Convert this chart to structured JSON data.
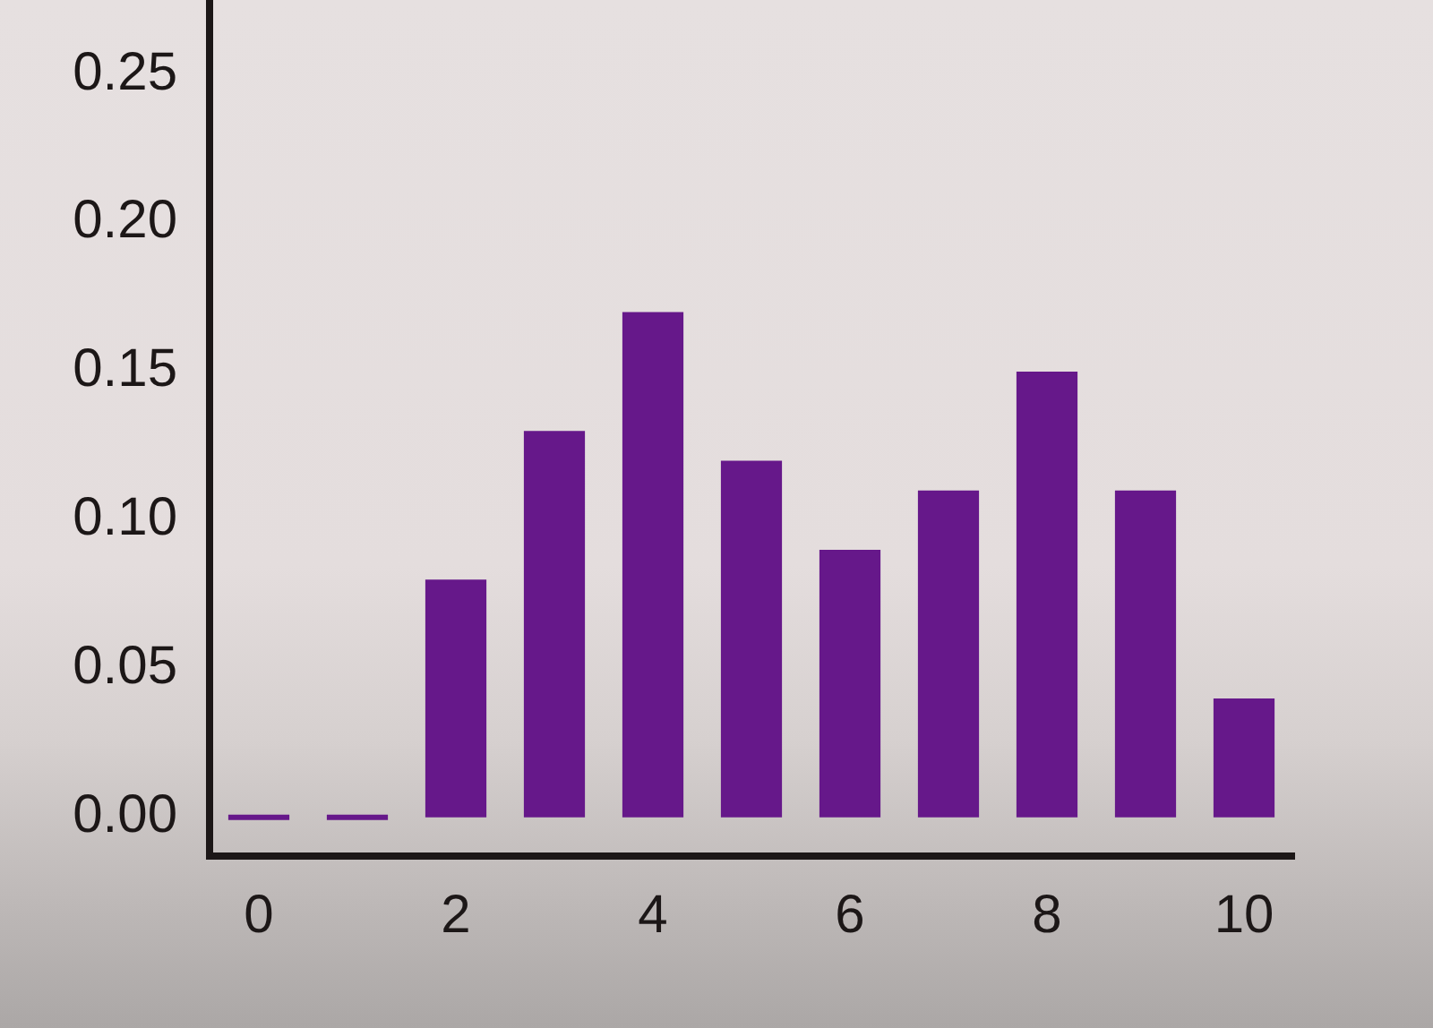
{
  "chart_data": {
    "type": "bar",
    "categories": [
      "0",
      null,
      "2",
      null,
      "4",
      null,
      "6",
      null,
      "8",
      null,
      "10"
    ],
    "values": [
      0,
      0,
      0.08,
      0.13,
      0.17,
      0.12,
      0.09,
      0.11,
      0.15,
      0.11,
      0.04
    ],
    "color": "#66188a",
    "ylim": [
      -0.013,
      0.275
    ],
    "yticks": [
      {
        "value": 0,
        "label": "0.00"
      },
      {
        "value": 0.05,
        "label": "0.05"
      },
      {
        "value": 0.1,
        "label": "0.10"
      },
      {
        "value": 0.15,
        "label": "0.15"
      },
      {
        "value": 0.2,
        "label": "0.20"
      },
      {
        "value": 0.25,
        "label": "0.25"
      }
    ]
  }
}
